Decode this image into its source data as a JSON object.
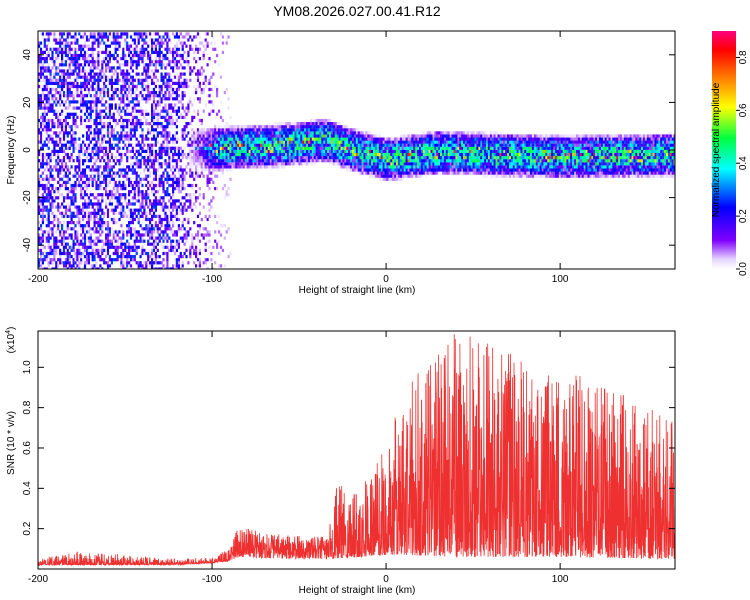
{
  "figure": {
    "title": "YM08.2026.027.00.41.R12"
  },
  "chart_data": [
    {
      "type": "heatmap",
      "xlabel": "Height of straight line (km)",
      "ylabel": "Frequency (Hz)",
      "xlim": [
        -200,
        166
      ],
      "ylim": [
        -50,
        50
      ],
      "xticks": [
        -200,
        -100,
        0,
        100
      ],
      "yticks": [
        -40,
        -20,
        0,
        20,
        40
      ],
      "colorbar": {
        "label": "Normalized spectral amplitude",
        "range": [
          0,
          0.9
        ],
        "ticks": [
          "0.0",
          "0.2",
          "0.4",
          "0.6",
          "0.8"
        ],
        "colormap": [
          "#ffffff",
          "#8000ff",
          "#0000ff",
          "#00ffff",
          "#00ff00",
          "#ffff00",
          "#ff8000",
          "#ff0000",
          "#ff0080"
        ]
      },
      "features": {
        "noise_region_x": [
          -200,
          -90
        ],
        "band_region_x": [
          -115,
          166
        ],
        "band_center_hz": [
          {
            "x": -110,
            "y": 0
          },
          {
            "x": -60,
            "y": 2
          },
          {
            "x": -35,
            "y": 4
          },
          {
            "x": -20,
            "y": 0
          },
          {
            "x": 0,
            "y": -4
          },
          {
            "x": 30,
            "y": -1
          },
          {
            "x": 100,
            "y": -3
          },
          {
            "x": 166,
            "y": -2
          }
        ],
        "band_halfwidth_hz": 7
      }
    },
    {
      "type": "line",
      "xlabel": "Height of straight line (km)",
      "ylabel": "SNR (10 * v/v)",
      "yscale_label": "(x10",
      "yscale_exponent": "4",
      "xlim": [
        -200,
        166
      ],
      "ylim": [
        0,
        1.18
      ],
      "xticks": [
        -200,
        -100,
        0,
        100
      ],
      "yticks": [
        0.2,
        0.4,
        0.6,
        0.8,
        1.0
      ],
      "color": "#ee3030",
      "series_envelope": [
        {
          "x": -200,
          "baseline": 0.02,
          "peak": 0.05
        },
        {
          "x": -175,
          "baseline": 0.02,
          "peak": 0.09
        },
        {
          "x": -120,
          "baseline": 0.02,
          "peak": 0.05
        },
        {
          "x": -100,
          "baseline": 0.03,
          "peak": 0.06
        },
        {
          "x": -90,
          "baseline": 0.04,
          "peak": 0.1
        },
        {
          "x": -85,
          "baseline": 0.06,
          "peak": 0.21
        },
        {
          "x": -60,
          "baseline": 0.05,
          "peak": 0.17
        },
        {
          "x": -33,
          "baseline": 0.05,
          "peak": 0.16
        },
        {
          "x": -31,
          "baseline": 0.05,
          "peak": 0.4
        },
        {
          "x": -15,
          "baseline": 0.06,
          "peak": 0.45
        },
        {
          "x": 0,
          "baseline": 0.07,
          "peak": 0.6
        },
        {
          "x": 10,
          "baseline": 0.07,
          "peak": 0.9
        },
        {
          "x": 40,
          "baseline": 0.06,
          "peak": 1.18
        },
        {
          "x": 100,
          "baseline": 0.06,
          "peak": 1.0
        },
        {
          "x": 166,
          "baseline": 0.05,
          "peak": 0.75
        }
      ]
    }
  ]
}
